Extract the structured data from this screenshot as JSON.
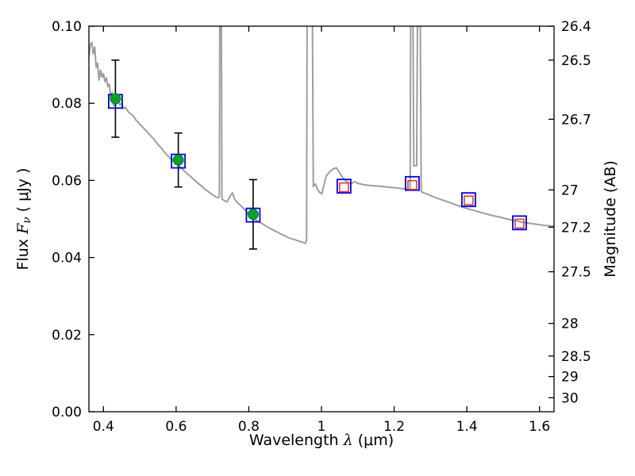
{
  "axis_labels": {
    "flux_pre": "Flux ",
    "flux_symbol": "F",
    "flux_subscript": "ν",
    "flux_post": " ( μJy )",
    "wavelength_pre": "Wavelength ",
    "wavelength_symbol": "λ",
    "wavelength_post": " (μm)",
    "magnitude": "Magnitude (AB)"
  },
  "chart_data": {
    "type": "line",
    "title": "",
    "xlabel": "Wavelength λ (μm)",
    "ylabel": "Flux Fν ( μJy )",
    "ylabel_right": "Magnitude (AB)",
    "xlim": [
      0.36,
      1.64
    ],
    "ylim": [
      0.0,
      0.1
    ],
    "grid": false,
    "legend": false,
    "background": "#ffffff",
    "axis_color": "#000000",
    "x_ticks": [
      0.4,
      0.6,
      0.8,
      1.0,
      1.2,
      1.4,
      1.6
    ],
    "x_tick_labels": [
      "0.4",
      "0.6",
      "0.8",
      "1",
      "1.2",
      "1.4",
      "1.6"
    ],
    "y_ticks_left": [
      0.0,
      0.02,
      0.04,
      0.06,
      0.08,
      0.1
    ],
    "y_tick_labels_left": [
      "0.00",
      "0.02",
      "0.04",
      "0.06",
      "0.08",
      "0.10"
    ],
    "y_ticks_right_mag": [
      26.4,
      26.5,
      26.7,
      27.0,
      27.2,
      27.5,
      28.0,
      28.5,
      29.0,
      30.0
    ],
    "y_tick_labels_right": [
      "26.4",
      "26.5",
      "26.7",
      "27",
      "27.2",
      "27.5",
      "28",
      "28.5",
      "29",
      "30"
    ],
    "mag_zeropoint_ab_ujy": 23.9,
    "spectrum": {
      "name": "model-spectrum",
      "color": "#9e9e9e",
      "linewidth": 2,
      "points": [
        [
          0.36,
          0.092
        ],
        [
          0.364,
          0.0952
        ],
        [
          0.368,
          0.0958
        ],
        [
          0.372,
          0.0928
        ],
        [
          0.376,
          0.0946
        ],
        [
          0.38,
          0.0893
        ],
        [
          0.384,
          0.0904
        ],
        [
          0.388,
          0.086
        ],
        [
          0.392,
          0.0886
        ],
        [
          0.396,
          0.0868
        ],
        [
          0.4,
          0.0877
        ],
        [
          0.404,
          0.0856
        ],
        [
          0.408,
          0.0866
        ],
        [
          0.412,
          0.0843
        ],
        [
          0.416,
          0.085
        ],
        [
          0.42,
          0.0816
        ],
        [
          0.424,
          0.0828
        ],
        [
          0.428,
          0.0794
        ],
        [
          0.432,
          0.081
        ],
        [
          0.436,
          0.0798
        ],
        [
          0.44,
          0.0806
        ],
        [
          0.445,
          0.0796
        ],
        [
          0.45,
          0.08
        ],
        [
          0.455,
          0.0786
        ],
        [
          0.46,
          0.079
        ],
        [
          0.47,
          0.0776
        ],
        [
          0.48,
          0.077
        ],
        [
          0.49,
          0.0756
        ],
        [
          0.5,
          0.0746
        ],
        [
          0.51,
          0.0736
        ],
        [
          0.52,
          0.0726
        ],
        [
          0.53,
          0.0716
        ],
        [
          0.54,
          0.0706
        ],
        [
          0.55,
          0.0693
        ],
        [
          0.56,
          0.0683
        ],
        [
          0.57,
          0.0671
        ],
        [
          0.58,
          0.0661
        ],
        [
          0.59,
          0.0652
        ],
        [
          0.6,
          0.0645
        ],
        [
          0.61,
          0.0636
        ],
        [
          0.62,
          0.0627
        ],
        [
          0.63,
          0.0618
        ],
        [
          0.64,
          0.061
        ],
        [
          0.65,
          0.0601
        ],
        [
          0.66,
          0.0593
        ],
        [
          0.67,
          0.0585
        ],
        [
          0.68,
          0.0577
        ],
        [
          0.69,
          0.057
        ],
        [
          0.7,
          0.0563
        ],
        [
          0.71,
          0.0557
        ],
        [
          0.716,
          0.0555
        ],
        [
          0.719,
          0.0559
        ],
        [
          0.7205,
          0.115
        ],
        [
          0.724,
          0.115
        ],
        [
          0.726,
          0.0552
        ],
        [
          0.732,
          0.0548
        ],
        [
          0.74,
          0.0544
        ],
        [
          0.748,
          0.0558
        ],
        [
          0.755,
          0.0568
        ],
        [
          0.762,
          0.055
        ],
        [
          0.77,
          0.0541
        ],
        [
          0.78,
          0.0533
        ],
        [
          0.79,
          0.0523
        ],
        [
          0.8,
          0.0511
        ],
        [
          0.81,
          0.0503
        ],
        [
          0.82,
          0.0497
        ],
        [
          0.83,
          0.0491
        ],
        [
          0.84,
          0.0486
        ],
        [
          0.85,
          0.048
        ],
        [
          0.86,
          0.0475
        ],
        [
          0.87,
          0.047
        ],
        [
          0.88,
          0.0465
        ],
        [
          0.89,
          0.046
        ],
        [
          0.9,
          0.0456
        ],
        [
          0.91,
          0.0451
        ],
        [
          0.92,
          0.0448
        ],
        [
          0.93,
          0.0445
        ],
        [
          0.94,
          0.0442
        ],
        [
          0.95,
          0.0439
        ],
        [
          0.956,
          0.0437
        ],
        [
          0.959,
          0.0444
        ],
        [
          0.961,
          0.115
        ],
        [
          0.9745,
          0.115
        ],
        [
          0.9775,
          0.0584
        ],
        [
          0.983,
          0.0591
        ],
        [
          0.989,
          0.0577
        ],
        [
          0.995,
          0.0569
        ],
        [
          1.001,
          0.0565
        ],
        [
          1.007,
          0.0589
        ],
        [
          1.013,
          0.0611
        ],
        [
          1.021,
          0.0621
        ],
        [
          1.031,
          0.0629
        ],
        [
          1.041,
          0.0633
        ],
        [
          1.049,
          0.0621
        ],
        [
          1.057,
          0.0609
        ],
        [
          1.065,
          0.06
        ],
        [
          1.073,
          0.0595
        ],
        [
          1.081,
          0.0591
        ],
        [
          1.091,
          0.0597
        ],
        [
          1.101,
          0.0592
        ],
        [
          1.116,
          0.0589
        ],
        [
          1.131,
          0.0587
        ],
        [
          1.146,
          0.0586
        ],
        [
          1.161,
          0.0585
        ],
        [
          1.181,
          0.0583
        ],
        [
          1.201,
          0.0581
        ],
        [
          1.221,
          0.0579
        ],
        [
          1.241,
          0.0577
        ],
        [
          1.244,
          0.0576
        ],
        [
          1.246,
          0.115
        ],
        [
          1.251,
          0.115
        ],
        [
          1.254,
          0.0638
        ],
        [
          1.262,
          0.0638
        ],
        [
          1.265,
          0.115
        ],
        [
          1.271,
          0.115
        ],
        [
          1.2745,
          0.0571
        ],
        [
          1.28,
          0.0568
        ],
        [
          1.29,
          0.0565
        ],
        [
          1.3,
          0.0561
        ],
        [
          1.315,
          0.0555
        ],
        [
          1.33,
          0.055
        ],
        [
          1.345,
          0.0545
        ],
        [
          1.36,
          0.054
        ],
        [
          1.375,
          0.0535
        ],
        [
          1.39,
          0.053
        ],
        [
          1.405,
          0.0526
        ],
        [
          1.42,
          0.0522
        ],
        [
          1.435,
          0.0518
        ],
        [
          1.45,
          0.0514
        ],
        [
          1.465,
          0.051
        ],
        [
          1.48,
          0.0507
        ],
        [
          1.495,
          0.0504
        ],
        [
          1.51,
          0.05
        ],
        [
          1.525,
          0.0497
        ],
        [
          1.54,
          0.0494
        ],
        [
          1.555,
          0.0491
        ],
        [
          1.57,
          0.0489
        ],
        [
          1.585,
          0.0487
        ],
        [
          1.6,
          0.0485
        ],
        [
          1.615,
          0.0483
        ],
        [
          1.63,
          0.0482
        ],
        [
          1.64,
          0.0481
        ]
      ]
    },
    "observed_points": {
      "name": "observed-photometry",
      "marker": "circle",
      "color": "#0aa12b",
      "edge_color": "#067a1e",
      "error_color": "#000000",
      "points": [
        {
          "x": 0.433,
          "y": 0.0812,
          "yerr": 0.01
        },
        {
          "x": 0.606,
          "y": 0.0653,
          "yerr": 0.007
        },
        {
          "x": 0.812,
          "y": 0.0512,
          "yerr": 0.009
        }
      ]
    },
    "model_photometry": {
      "name": "model-photometry",
      "marker": "open-square",
      "color": "#0000e0",
      "size": 17,
      "points": [
        {
          "x": 0.433,
          "y": 0.0805
        },
        {
          "x": 0.606,
          "y": 0.065
        },
        {
          "x": 0.812,
          "y": 0.051
        },
        {
          "x": 1.062,
          "y": 0.0585
        },
        {
          "x": 1.25,
          "y": 0.0592
        },
        {
          "x": 1.405,
          "y": 0.055
        },
        {
          "x": 1.545,
          "y": 0.049
        }
      ]
    },
    "ir_photometry": {
      "name": "ir-photometry",
      "marker": "open-square",
      "color": "#e03c3c",
      "size": 11,
      "points": [
        {
          "x": 1.062,
          "y": 0.0582
        },
        {
          "x": 1.25,
          "y": 0.0588
        },
        {
          "x": 1.405,
          "y": 0.0548
        },
        {
          "x": 1.545,
          "y": 0.0488
        }
      ]
    }
  }
}
